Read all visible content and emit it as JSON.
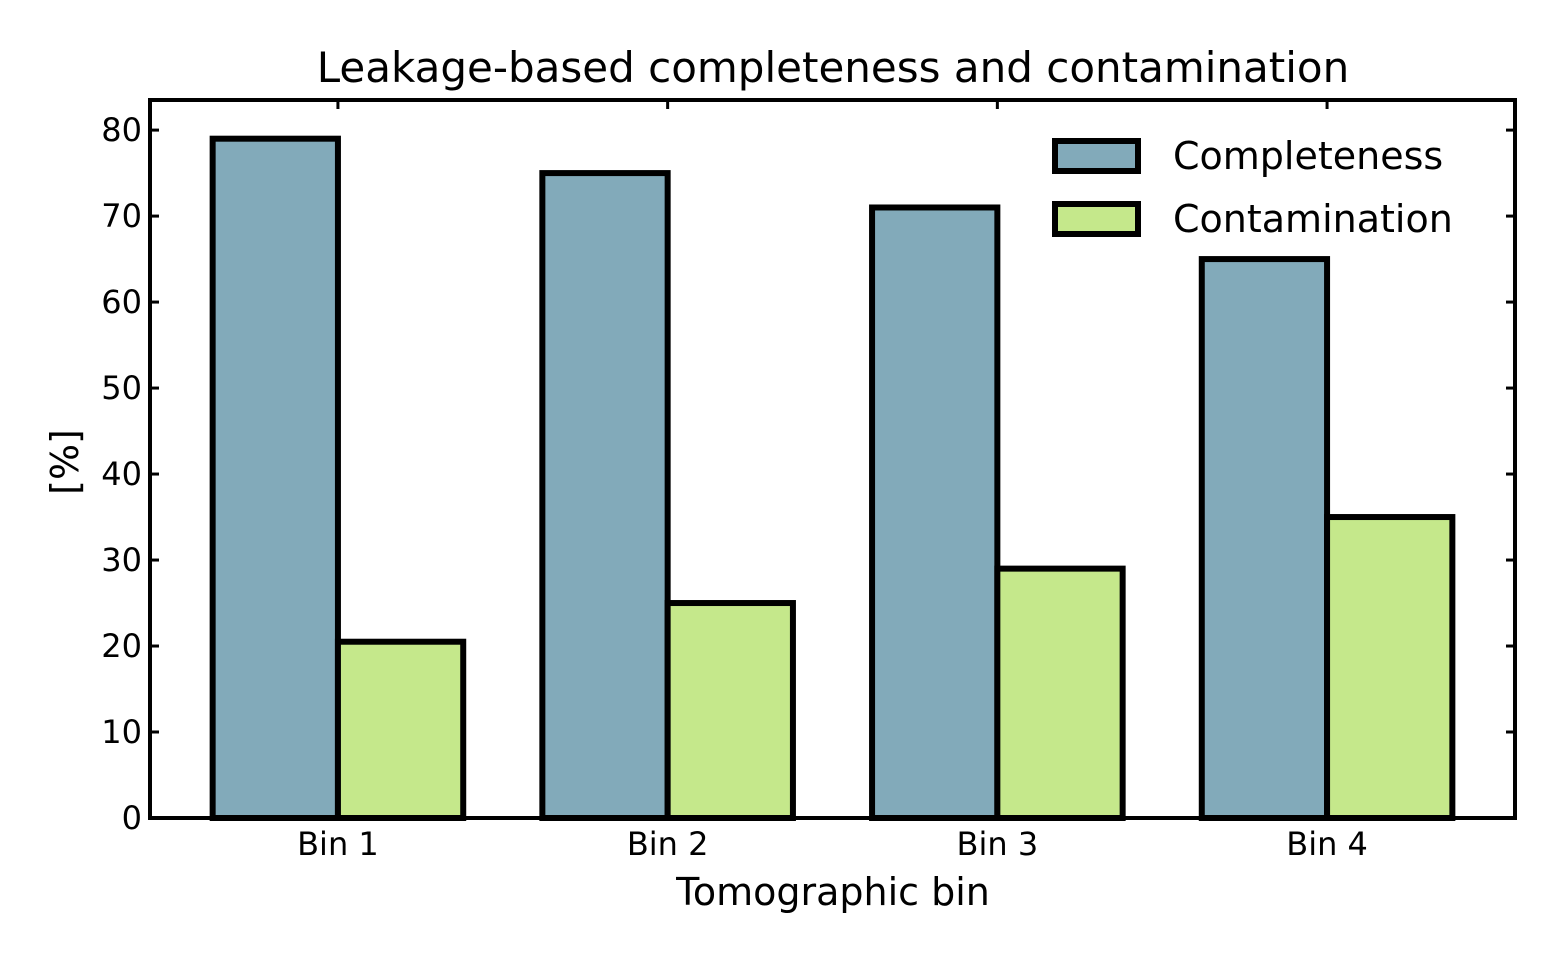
{
  "chart_data": {
    "type": "bar",
    "title": "Leakage-based completeness and contamination",
    "xlabel": "Tomographic bin",
    "ylabel": "[%]",
    "categories": [
      "Bin 1",
      "Bin 2",
      "Bin 3",
      "Bin 4"
    ],
    "series": [
      {
        "name": "Completeness",
        "values": [
          79,
          75,
          71,
          65
        ],
        "color": "#82aaba"
      },
      {
        "name": "Contamination",
        "values": [
          20.5,
          25,
          29,
          35
        ],
        "color": "#c5e88b"
      }
    ],
    "ylim": [
      0,
      83.5
    ],
    "yticks": [
      0,
      10,
      20,
      30,
      40,
      50,
      60,
      70,
      80
    ],
    "grid": false,
    "legend_position": "top-right",
    "edge_color": "#000000"
  }
}
